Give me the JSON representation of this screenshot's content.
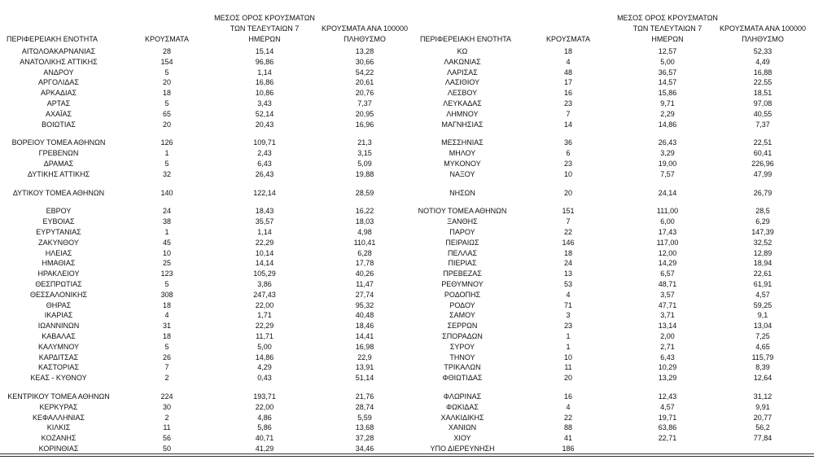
{
  "table": {
    "left": {
      "headers": [
        "ΠΕΡΙΦΕΡΕΙΑΚΗ ΕΝΟΤΗΤΑ",
        "ΚΡΟΥΣΜΑΤΑ",
        "ΜΕΣΟΣ ΟΡΟΣ ΚΡΟΥΣΜΑΤΩΝ\nΤΩΝ ΤΕΛΕΥΤΑΙΩΝ 7\nΗΜΕΡΩΝ",
        "ΚΡΟΥΣΜΑΤΑ ΑΝΑ 100000\nΠΛΗΘΥΣΜΟ"
      ],
      "groups": [
        [
          [
            "ΑΙΤΩΛΟΑΚΑΡΝΑΝΙΑΣ",
            "28",
            "15,14",
            "13,28"
          ],
          [
            "ΑΝΑΤΟΛΙΚΗΣ ΑΤΤΙΚΗΣ",
            "154",
            "96,86",
            "30,66"
          ],
          [
            "ΑΝΔΡΟΥ",
            "5",
            "1,14",
            "54,22"
          ],
          [
            "ΑΡΓΟΛΙΔΑΣ",
            "20",
            "16,86",
            "20,61"
          ],
          [
            "ΑΡΚΑΔΙΑΣ",
            "18",
            "10,86",
            "20,76"
          ],
          [
            "ΑΡΤΑΣ",
            "5",
            "3,43",
            "7,37"
          ],
          [
            "ΑΧΑΪΑΣ",
            "65",
            "52,14",
            "20,95"
          ],
          [
            "ΒΟΙΩΤΙΑΣ",
            "20",
            "20,43",
            "16,96"
          ]
        ],
        [
          [
            "ΒΟΡΕΙΟΥ ΤΟΜΕΑ ΑΘΗΝΩΝ",
            "126",
            "109,71",
            "21,3"
          ],
          [
            "ΓΡΕΒΕΝΩΝ",
            "1",
            "2,43",
            "3,15"
          ],
          [
            "ΔΡΑΜΑΣ",
            "5",
            "6,43",
            "5,09"
          ],
          [
            "ΔΥΤΙΚΗΣ ΑΤΤΙΚΗΣ",
            "32",
            "26,43",
            "19,88"
          ]
        ],
        [
          [
            "ΔΥΤΙΚΟΥ ΤΟΜΕΑ ΑΘΗΝΩΝ",
            "140",
            "122,14",
            "28,59"
          ]
        ],
        [
          [
            "ΕΒΡΟΥ",
            "24",
            "18,43",
            "16,22"
          ],
          [
            "ΕΥΒΟΙΑΣ",
            "38",
            "35,57",
            "18,03"
          ],
          [
            "ΕΥΡΥΤΑΝΙΑΣ",
            "1",
            "1,14",
            "4,98"
          ],
          [
            "ΖΑΚΥΝΘΟΥ",
            "45",
            "22,29",
            "110,41"
          ],
          [
            "ΗΛΕΙΑΣ",
            "10",
            "10,14",
            "6,28"
          ],
          [
            "ΗΜΑΘΙΑΣ",
            "25",
            "14,14",
            "17,78"
          ],
          [
            "ΗΡΑΚΛΕΙΟΥ",
            "123",
            "105,29",
            "40,26"
          ],
          [
            "ΘΕΣΠΡΩΤΙΑΣ",
            "5",
            "3,86",
            "11,47"
          ],
          [
            "ΘΕΣΣΑΛΟΝΙΚΗΣ",
            "308",
            "247,43",
            "27,74"
          ],
          [
            "ΘΗΡΑΣ",
            "18",
            "22,00",
            "95,32"
          ],
          [
            "ΙΚΑΡΙΑΣ",
            "4",
            "1,71",
            "40,48"
          ],
          [
            "ΙΩΑΝΝΙΝΩΝ",
            "31",
            "22,29",
            "18,46"
          ],
          [
            "ΚΑΒΑΛΑΣ",
            "18",
            "11,71",
            "14,41"
          ],
          [
            "ΚΑΛΥΜΝΟΥ",
            "5",
            "5,00",
            "16,98"
          ],
          [
            "ΚΑΡΔΙΤΣΑΣ",
            "26",
            "14,86",
            "22,9"
          ],
          [
            "ΚΑΣΤΟΡΙΑΣ",
            "7",
            "4,29",
            "13,91"
          ],
          [
            "ΚΕΑΣ - ΚΥΘΝΟΥ",
            "2",
            "0,43",
            "51,14"
          ]
        ],
        [
          [
            "ΚΕΝΤΡΙΚΟΥ ΤΟΜΕΑ ΑΘΗΝΩΝ",
            "224",
            "193,71",
            "21,76"
          ],
          [
            "ΚΕΡΚΥΡΑΣ",
            "30",
            "22,00",
            "28,74"
          ],
          [
            "ΚΕΦΑΛΛΗΝΙΑΣ",
            "2",
            "4,86",
            "5,59"
          ],
          [
            "ΚΙΛΚΙΣ",
            "11",
            "5,86",
            "13,68"
          ],
          [
            "ΚΟΖΑΝΗΣ",
            "56",
            "40,71",
            "37,28"
          ],
          [
            "ΚΟΡΙΝΘΙΑΣ",
            "50",
            "41,29",
            "34,46"
          ]
        ]
      ]
    },
    "right": {
      "headers": [
        "ΠΕΡΙΦΕΡΕΙΑΚΗ ΕΝΟΤΗΤΑ",
        "ΚΡΟΥΣΜΑΤΑ",
        "ΜΕΣΟΣ ΟΡΟΣ ΚΡΟΥΣΜΑΤΩΝ\nΤΩΝ ΤΕΛΕΥΤΑΙΩΝ 7\nΗΜΕΡΩΝ",
        "ΚΡΟΥΣΜΑΤΑ ΑΝΑ 100000\nΠΛΗΘΥΣΜΟ"
      ],
      "groups": [
        [
          [
            "ΚΩ",
            "18",
            "12,57",
            "52,33"
          ],
          [
            "ΛΑΚΩΝΙΑΣ",
            "4",
            "5,00",
            "4,49"
          ],
          [
            "ΛΑΡΙΣΑΣ",
            "48",
            "36,57",
            "16,88"
          ],
          [
            "ΛΑΣΙΘΙΟΥ",
            "17",
            "14,57",
            "22,55"
          ],
          [
            "ΛΕΣΒΟΥ",
            "16",
            "15,86",
            "18,51"
          ],
          [
            "ΛΕΥΚΑΔΑΣ",
            "23",
            "9,71",
            "97,08"
          ],
          [
            "ΛΗΜΝΟΥ",
            "7",
            "2,29",
            "40,55"
          ],
          [
            "ΜΑΓΝΗΣΙΑΣ",
            "14",
            "14,86",
            "7,37"
          ]
        ],
        [
          [
            "ΜΕΣΣΗΝΙΑΣ",
            "36",
            "26,43",
            "22,51"
          ],
          [
            "ΜΗΛΟΥ",
            "6",
            "3,29",
            "60,41"
          ],
          [
            "ΜΥΚΟΝΟΥ",
            "23",
            "19,00",
            "226,96"
          ],
          [
            "ΝΑΞΟΥ",
            "10",
            "7,57",
            "47,99"
          ]
        ],
        [
          [
            "ΝΗΣΩΝ",
            "20",
            "24,14",
            "26,79"
          ]
        ],
        [
          [
            "ΝΟΤΙΟΥ ΤΟΜΕΑ ΑΘΗΝΩΝ",
            "151",
            "111,00",
            "28,5"
          ],
          [
            "ΞΑΝΘΗΣ",
            "7",
            "6,00",
            "6,29"
          ],
          [
            "ΠΑΡΟΥ",
            "22",
            "17,43",
            "147,39"
          ],
          [
            "ΠΕΙΡΑΙΩΣ",
            "146",
            "117,00",
            "32,52"
          ],
          [
            "ΠΕΛΛΑΣ",
            "18",
            "12,00",
            "12,89"
          ],
          [
            "ΠΙΕΡΙΑΣ",
            "24",
            "14,29",
            "18,94"
          ],
          [
            "ΠΡΕΒΕΖΑΣ",
            "13",
            "6,57",
            "22,61"
          ],
          [
            "ΡΕΘΥΜΝΟΥ",
            "53",
            "48,71",
            "61,91"
          ],
          [
            "ΡΟΔΟΠΗΣ",
            "4",
            "3,57",
            "4,57"
          ],
          [
            "ΡΟΔΟΥ",
            "71",
            "47,71",
            "59,25"
          ],
          [
            "ΣΑΜΟΥ",
            "3",
            "3,71",
            "9,1"
          ],
          [
            "ΣΕΡΡΩΝ",
            "23",
            "13,14",
            "13,04"
          ],
          [
            "ΣΠΟΡΑΔΩΝ",
            "1",
            "2,00",
            "7,25"
          ],
          [
            "ΣΥΡΟΥ",
            "1",
            "2,71",
            "4,65"
          ],
          [
            "ΤΗΝΟΥ",
            "10",
            "6,43",
            "115,79"
          ],
          [
            "ΤΡΙΚΑΛΩΝ",
            "11",
            "10,29",
            "8,39"
          ],
          [
            "ΦΘΙΩΤΙΔΑΣ",
            "20",
            "13,29",
            "12,64"
          ]
        ],
        [
          [
            "ΦΛΩΡΙΝΑΣ",
            "16",
            "12,43",
            "31,12"
          ],
          [
            "ΦΩΚΙΔΑΣ",
            "4",
            "4,57",
            "9,91"
          ],
          [
            "ΧΑΛΚΙΔΙΚΗΣ",
            "22",
            "19,71",
            "20,77"
          ],
          [
            "ΧΑΝΙΩΝ",
            "88",
            "63,86",
            "56,2"
          ],
          [
            "ΧΙΟΥ",
            "41",
            "22,71",
            "77,84"
          ],
          [
            "ΥΠΟ ΔΙΕΡΕΥΝΗΣΗ",
            "186"
          ]
        ]
      ]
    }
  }
}
